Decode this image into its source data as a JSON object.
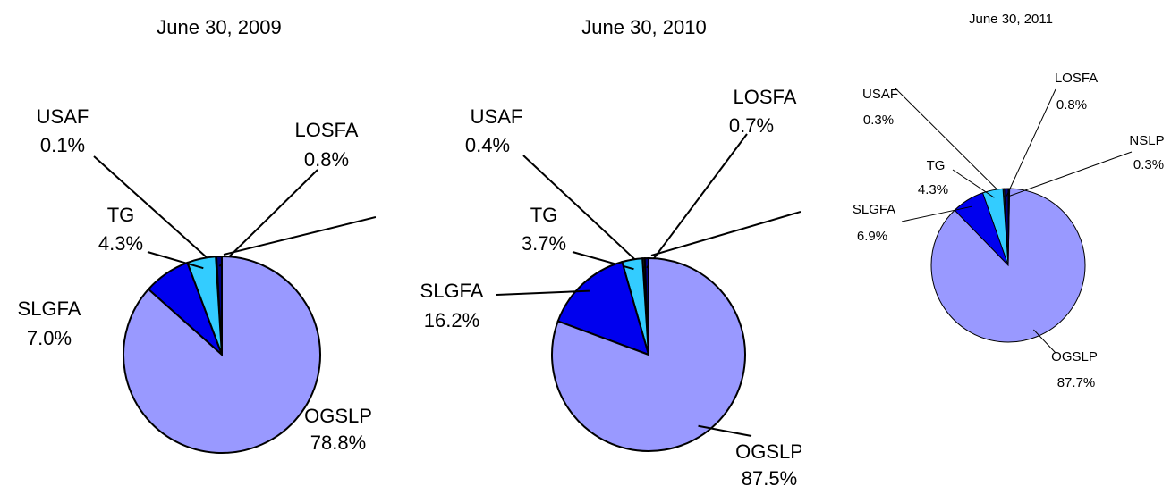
{
  "chart_data": [
    {
      "type": "pie",
      "title": "June 30, 2009",
      "labels": [
        "LOSFA",
        "USAF",
        "TG",
        "SLGFA",
        "OGSLP"
      ],
      "values": [
        0.8,
        0.1,
        4.3,
        7.0,
        78.8
      ],
      "value_labels": [
        "0.8%",
        "0.1%",
        "4.3%",
        "7.0%",
        "78.8%"
      ],
      "colors": [
        "#000080",
        "#333333",
        "#33ccff",
        "#0000ee",
        "#9999ff"
      ]
    },
    {
      "type": "pie",
      "title": "June 30, 2010",
      "labels": [
        "LOSFA",
        "USAF",
        "TG",
        "SLGFA",
        "OGSLP"
      ],
      "values": [
        0.7,
        0.4,
        3.7,
        16.2,
        87.5
      ],
      "value_labels": [
        "0.7%",
        "0.4%",
        "3.7%",
        "16.2%",
        "87.5%"
      ],
      "colors": [
        "#000080",
        "#333333",
        "#33ccff",
        "#0000ee",
        "#9999ff"
      ]
    },
    {
      "type": "pie",
      "title": "June 30, 2011",
      "labels": [
        "LOSFA",
        "USAF",
        "TG",
        "SLGFA",
        "OGSLP",
        "NSLP"
      ],
      "values": [
        0.8,
        0.3,
        4.3,
        6.9,
        87.7,
        0.3
      ],
      "value_labels": [
        "0.8%",
        "0.3%",
        "4.3%",
        "6.9%",
        "87.7%",
        "0.3%"
      ],
      "colors": [
        "#000080",
        "#333333",
        "#33ccff",
        "#0000ee",
        "#9999ff",
        "#000000"
      ]
    }
  ]
}
